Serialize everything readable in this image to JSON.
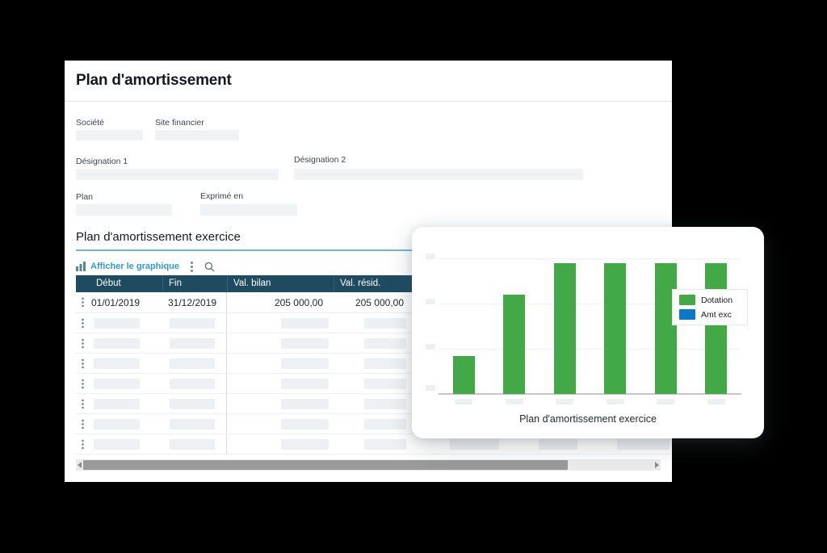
{
  "app": {
    "title": "Plan d'amortissement"
  },
  "form": {
    "societe_label": "Société",
    "site_financier_label": "Site financier",
    "designation1_label": "Désignation 1",
    "designation2_label": "Désignation 2",
    "plan_label": "Plan",
    "exprime_en_label": "Exprimé en"
  },
  "section": {
    "title": "Plan d'amortissement exercice",
    "show_chart_label": "Afficher le graphique"
  },
  "table": {
    "columns": [
      "Début",
      "Fin",
      "Val. bilan",
      "Val. résid."
    ],
    "row1": {
      "debut": "01/01/2019",
      "fin": "31/12/2019",
      "val_bilan": "205 000,00",
      "val_resid": "205 000,00"
    },
    "placeholder_rows": 7
  },
  "chart_data": {
    "type": "bar",
    "title": "Plan d'amortissement exercice",
    "categories": [
      "",
      "",
      "",
      "",
      "",
      ""
    ],
    "series": [
      {
        "name": "Dotation",
        "color": "#43a846",
        "values": [
          29,
          76,
          100,
          100,
          100,
          100
        ]
      },
      {
        "name": "Amt exc",
        "color": "#0a78c8",
        "values": [
          0,
          0,
          0,
          0,
          0,
          0
        ]
      }
    ],
    "xlabel": "",
    "ylabel": "",
    "ylim": [
      0,
      110
    ],
    "grid": "horizontal",
    "legend_position": "right-inside",
    "tick_labels": "placeholder"
  },
  "colors": {
    "table_header_bg": "#1e4b60",
    "link_blue": "#2f9ad5",
    "section_underline": "#69b8e3",
    "bar_green": "#43a846",
    "legend_blue": "#0a78c8",
    "placeholder_gray": "#eef0f3",
    "canvas_bg": "#000000"
  }
}
